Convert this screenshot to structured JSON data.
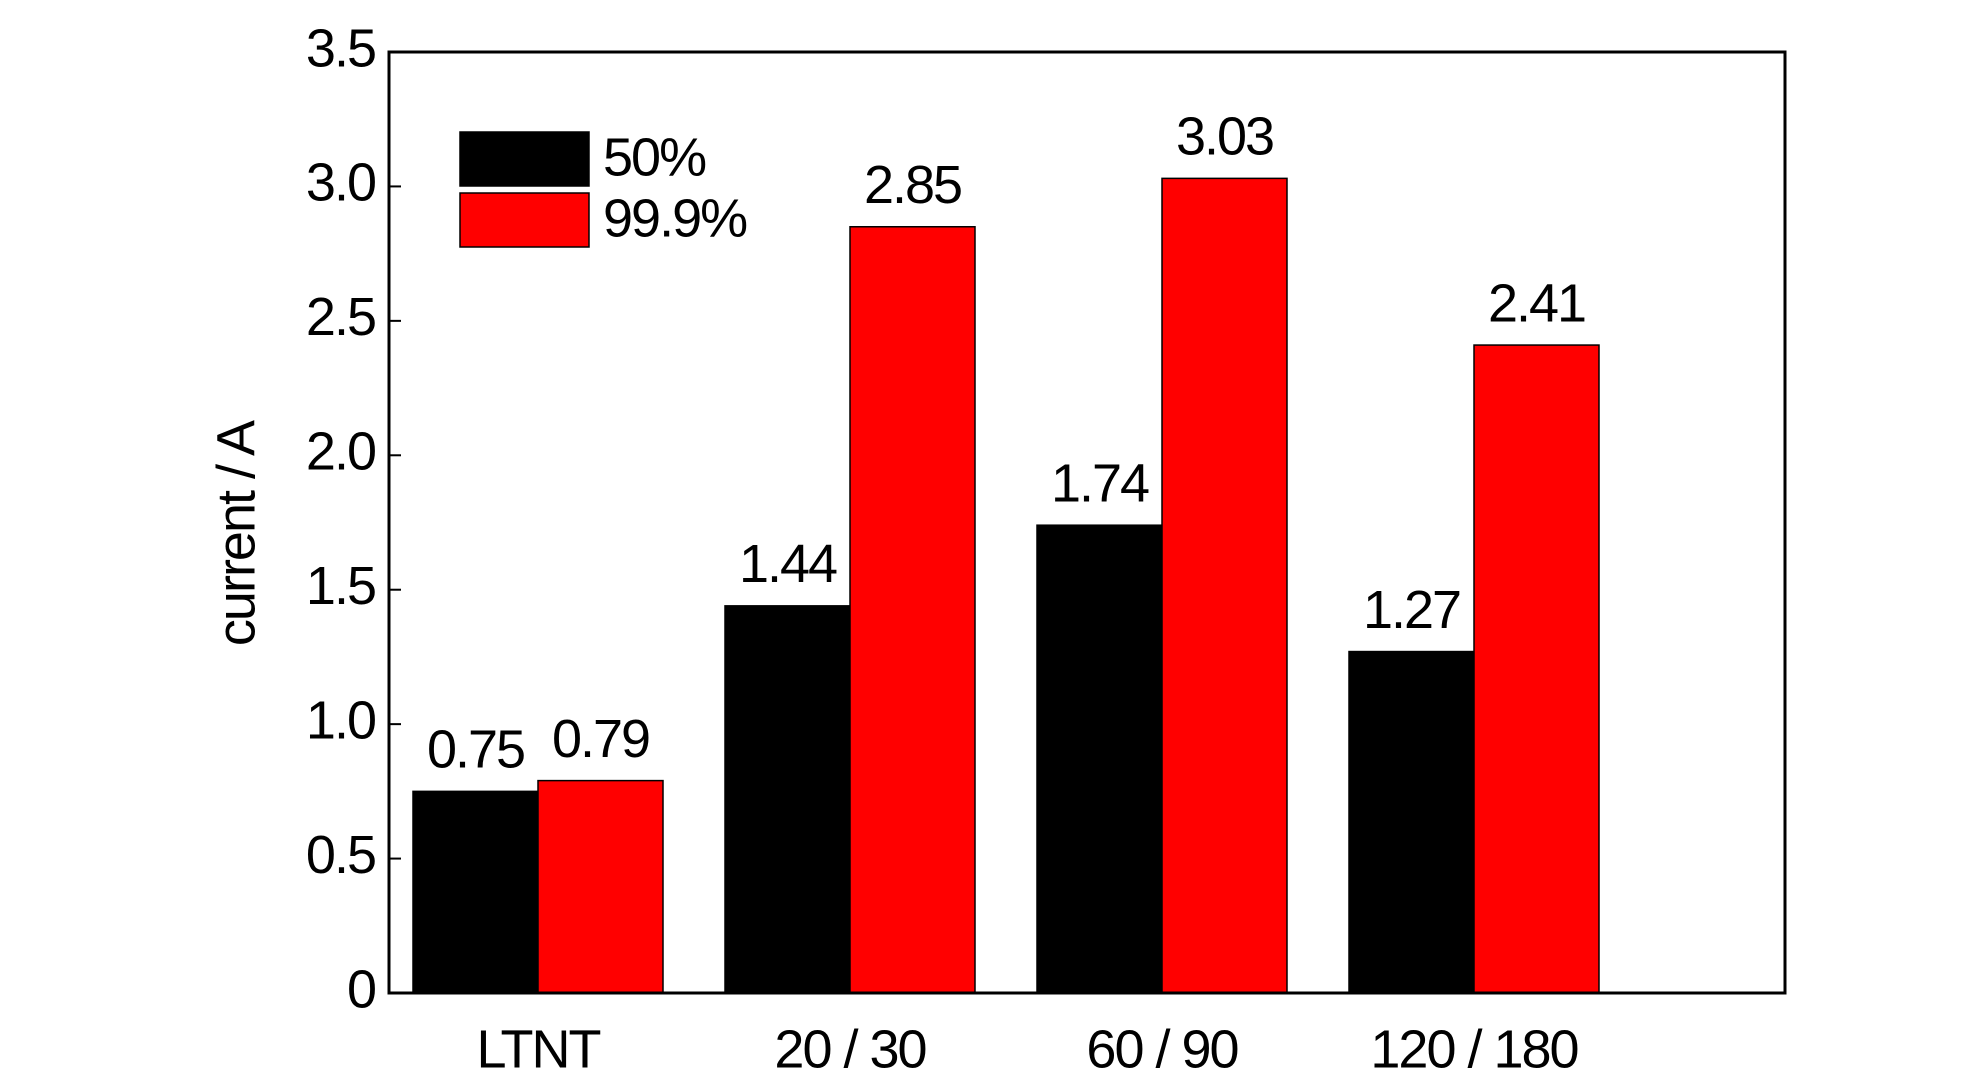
{
  "chart_data": {
    "type": "bar",
    "ylabel": "current / A",
    "categories": [
      "LTNT",
      "20 / 30",
      "60 / 90",
      "120 / 180"
    ],
    "series": [
      {
        "name": "50%",
        "color": "#000000",
        "values": [
          0.75,
          1.44,
          1.74,
          1.27
        ]
      },
      {
        "name": "99.9%",
        "color": "#ff0000",
        "values": [
          0.79,
          2.85,
          3.03,
          2.41
        ]
      }
    ],
    "ylim": [
      0,
      3.5
    ],
    "yticks": [
      0,
      0.5,
      {
        "value": 1,
        "label": "1.0"
      },
      1.5,
      {
        "value": 2,
        "label": "2.0"
      },
      2.5,
      {
        "value": 3,
        "label": "3.0"
      },
      3.5
    ],
    "legend": "upper left"
  }
}
